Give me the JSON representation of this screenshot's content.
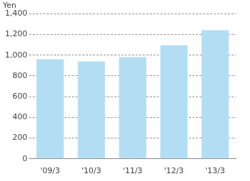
{
  "chart_data": {
    "type": "bar",
    "y_label": "Yen",
    "categories": [
      "'09/3",
      "'10/3",
      "'11/3",
      "'12/3",
      "'13/3"
    ],
    "values": [
      960,
      940,
      980,
      1095,
      1240
    ],
    "color": "#b3ddf2",
    "ylim": [
      0,
      1400
    ],
    "yticks": [
      0,
      200,
      400,
      600,
      800,
      {
        "value": 1000,
        "label": "1,000"
      },
      {
        "value": 1200,
        "label": "1,200"
      },
      {
        "value": 1400,
        "label": "1,400"
      }
    ],
    "grid": true
  }
}
